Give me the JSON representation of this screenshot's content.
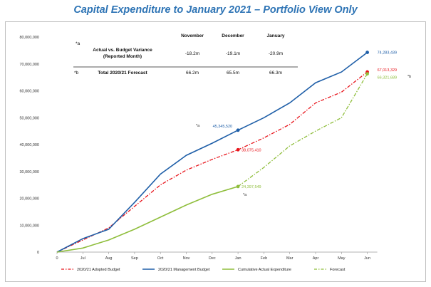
{
  "title": "Capital Expenditure to January 2021 – Portfolio View Only",
  "table": {
    "months": [
      "November",
      "December",
      "January"
    ],
    "rows": [
      {
        "marker": "*a",
        "label_lines": [
          "Actual vs. Budget Variance",
          "(Reported Month)"
        ],
        "values": [
          "-18.2m",
          "-19.1m",
          "-20.9m"
        ]
      },
      {
        "marker": "*b",
        "label_lines": [
          "Total 2020/21 Forecast"
        ],
        "values": [
          "66.2m",
          "65.5m",
          "66.3m"
        ]
      }
    ]
  },
  "notes": {
    "a": "*a",
    "a2": "*a",
    "b": "*b"
  },
  "chart_data": {
    "type": "line",
    "categories": [
      "0",
      "Jul",
      "Aug",
      "Sep",
      "Oct",
      "Nov",
      "Dec",
      "Jan",
      "Feb",
      "Mar",
      "Apr",
      "May",
      "Jun"
    ],
    "y_ticks": [
      "0",
      "10,000,000",
      "20,000,000",
      "30,000,000",
      "40,000,000",
      "50,000,000",
      "60,000,000",
      "70,000,000",
      "80,000,000"
    ],
    "ylim": [
      0,
      80000000
    ],
    "series": [
      {
        "name": "2020/21 Adopted Budget",
        "color": "#e8141b",
        "style": "dashdot",
        "values": [
          0,
          null,
          9000000,
          17000000,
          25000000,
          30500000,
          34500000,
          38075410,
          42500000,
          47500000,
          55500000,
          59500000,
          67013329
        ]
      },
      {
        "name": "2020/21 Management Budget",
        "color": "#1f5fa8",
        "style": "solid",
        "values": [
          0,
          5000000,
          8500000,
          18500000,
          29000000,
          36000000,
          40500000,
          45345520,
          50000000,
          55500000,
          63000000,
          67000000,
          74283439
        ]
      },
      {
        "name": "Cumulative Actual Expenditure",
        "color": "#8fbe3c",
        "style": "solid",
        "values": [
          0,
          1500000,
          4500000,
          8500000,
          13000000,
          17500000,
          21500000,
          24397549,
          null,
          null,
          null,
          null,
          null
        ]
      },
      {
        "name": "Forecast",
        "color": "#8fbe3c",
        "style": "dashdot",
        "values": [
          null,
          null,
          null,
          null,
          null,
          null,
          null,
          24397549,
          31500000,
          39500000,
          45000000,
          50000000,
          66321689
        ]
      }
    ],
    "data_labels": [
      {
        "series": 1,
        "index": 7,
        "text": "45,345,520"
      },
      {
        "series": 0,
        "index": 7,
        "text": "38,075,410"
      },
      {
        "series": 2,
        "index": 7,
        "text": "24,397,549"
      },
      {
        "series": 1,
        "index": 12,
        "text": "74,283,439"
      },
      {
        "series": 0,
        "index": 12,
        "text": "67,013,329"
      },
      {
        "series": 3,
        "index": 12,
        "text": "66,321,689"
      }
    ]
  }
}
